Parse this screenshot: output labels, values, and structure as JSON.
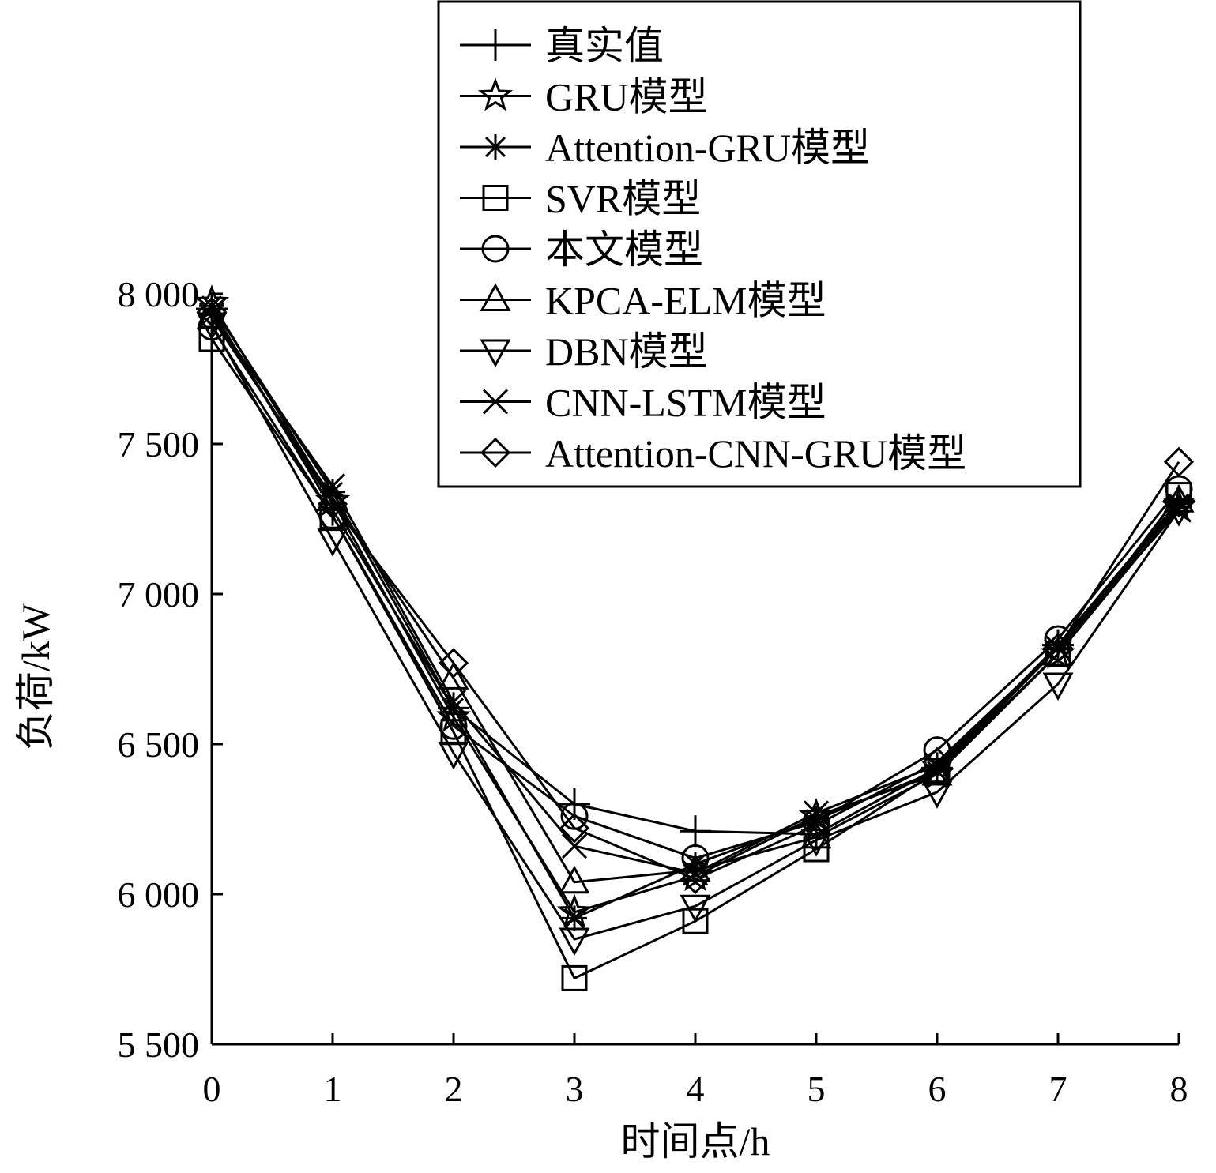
{
  "chart_data": {
    "type": "line",
    "title": "",
    "xlabel": "时间点/h",
    "ylabel": "负荷/kW",
    "x": [
      0,
      1,
      2,
      3,
      4,
      5,
      6,
      7,
      8
    ],
    "x_ticks": [
      "0",
      "1",
      "2",
      "3",
      "4",
      "5",
      "6",
      "7",
      "8"
    ],
    "xlim": [
      0,
      8
    ],
    "y_ticks": [
      {
        "value": 5500,
        "label": "5 500"
      },
      {
        "value": 6000,
        "label": "6 000"
      },
      {
        "value": 6500,
        "label": "6 500"
      },
      {
        "value": 7000,
        "label": "7 000"
      },
      {
        "value": 7500,
        "label": "7 500"
      },
      {
        "value": 8000,
        "label": "8 000"
      }
    ],
    "ylim": [
      5500,
      8000
    ],
    "grid": false,
    "legend_position": "top-center",
    "series": [
      {
        "name": "真实值",
        "marker": "plus",
        "values": [
          7950,
          7280,
          6620,
          6300,
          6210,
          6200,
          6420,
          6830,
          7310
        ]
      },
      {
        "name": "GRU模型",
        "marker": "star",
        "values": [
          7970,
          7310,
          6590,
          5940,
          6060,
          6260,
          6400,
          6800,
          7290
        ]
      },
      {
        "name": "Attention-GRU模型",
        "marker": "asterisk",
        "values": [
          7960,
          7340,
          6620,
          5920,
          6100,
          6250,
          6410,
          6820,
          7300
        ]
      },
      {
        "name": "SVR模型",
        "marker": "square",
        "values": [
          7850,
          7260,
          6540,
          5720,
          5910,
          6150,
          6410,
          6800,
          7330
        ]
      },
      {
        "name": "本文模型",
        "marker": "circle",
        "values": [
          7890,
          7260,
          6560,
          6260,
          6120,
          6240,
          6480,
          6850,
          7350
        ]
      },
      {
        "name": "KPCA-ELM模型",
        "marker": "triangle-up",
        "values": [
          7920,
          7320,
          6720,
          6040,
          6080,
          6190,
          6400,
          6800,
          7310
        ]
      },
      {
        "name": "DBN模型",
        "marker": "triangle-down",
        "values": [
          7900,
          7180,
          6470,
          5850,
          5960,
          6180,
          6340,
          6700,
          7280
        ]
      },
      {
        "name": "CNN-LSTM模型",
        "marker": "x",
        "values": [
          7930,
          7360,
          6640,
          6160,
          6070,
          6270,
          6430,
          6820,
          7280
        ]
      },
      {
        "name": "Attention-CNN-GRU模型",
        "marker": "diamond",
        "values": [
          7940,
          7300,
          6770,
          6220,
          6050,
          6230,
          6440,
          6820,
          7440
        ]
      }
    ]
  }
}
